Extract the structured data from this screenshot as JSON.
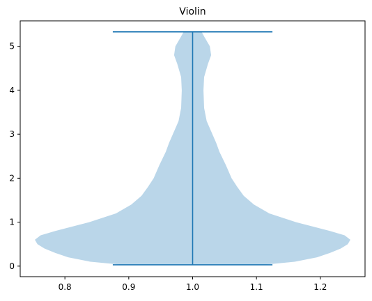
{
  "chart_data": {
    "type": "violin",
    "title": "Violin",
    "xlim": [
      0.73,
      1.27
    ],
    "ylim": [
      -0.24,
      5.58
    ],
    "x_ticks": [
      {
        "value": 0.8,
        "label": "0.8"
      },
      {
        "value": 0.9,
        "label": "0.9"
      },
      {
        "value": 1.0,
        "label": "1.0"
      },
      {
        "value": 1.1,
        "label": "1.1"
      },
      {
        "value": 1.2,
        "label": "1.2"
      }
    ],
    "y_ticks": [
      {
        "value": 0,
        "label": "0"
      },
      {
        "value": 1,
        "label": "1"
      },
      {
        "value": 2,
        "label": "2"
      },
      {
        "value": 3,
        "label": "3"
      },
      {
        "value": 4,
        "label": "4"
      },
      {
        "value": 5,
        "label": "5"
      }
    ],
    "violin": {
      "position": 1.0,
      "min": 0.03,
      "max": 5.33,
      "cap_halfwidth": 0.125,
      "fill_color": "#bad6e9",
      "line_color": "#1f77b4",
      "density_profile": [
        {
          "y": 0.03,
          "halfwidth": 0.11
        },
        {
          "y": 0.1,
          "halfwidth": 0.16
        },
        {
          "y": 0.2,
          "halfwidth": 0.195
        },
        {
          "y": 0.3,
          "halfwidth": 0.215
        },
        {
          "y": 0.4,
          "halfwidth": 0.232
        },
        {
          "y": 0.5,
          "halfwidth": 0.243
        },
        {
          "y": 0.6,
          "halfwidth": 0.247
        },
        {
          "y": 0.7,
          "halfwidth": 0.238
        },
        {
          "y": 0.8,
          "halfwidth": 0.215
        },
        {
          "y": 1.0,
          "halfwidth": 0.162
        },
        {
          "y": 1.2,
          "halfwidth": 0.12
        },
        {
          "y": 1.4,
          "halfwidth": 0.096
        },
        {
          "y": 1.6,
          "halfwidth": 0.08
        },
        {
          "y": 1.8,
          "halfwidth": 0.07
        },
        {
          "y": 2.0,
          "halfwidth": 0.061
        },
        {
          "y": 2.3,
          "halfwidth": 0.052
        },
        {
          "y": 2.6,
          "halfwidth": 0.042
        },
        {
          "y": 2.8,
          "halfwidth": 0.037
        },
        {
          "y": 3.0,
          "halfwidth": 0.031
        },
        {
          "y": 3.3,
          "halfwidth": 0.022
        },
        {
          "y": 3.6,
          "halfwidth": 0.018
        },
        {
          "y": 4.0,
          "halfwidth": 0.017
        },
        {
          "y": 4.3,
          "halfwidth": 0.018
        },
        {
          "y": 4.6,
          "halfwidth": 0.024
        },
        {
          "y": 4.8,
          "halfwidth": 0.029
        },
        {
          "y": 5.0,
          "halfwidth": 0.027
        },
        {
          "y": 5.2,
          "halfwidth": 0.019
        },
        {
          "y": 5.33,
          "halfwidth": 0.014
        }
      ]
    }
  }
}
